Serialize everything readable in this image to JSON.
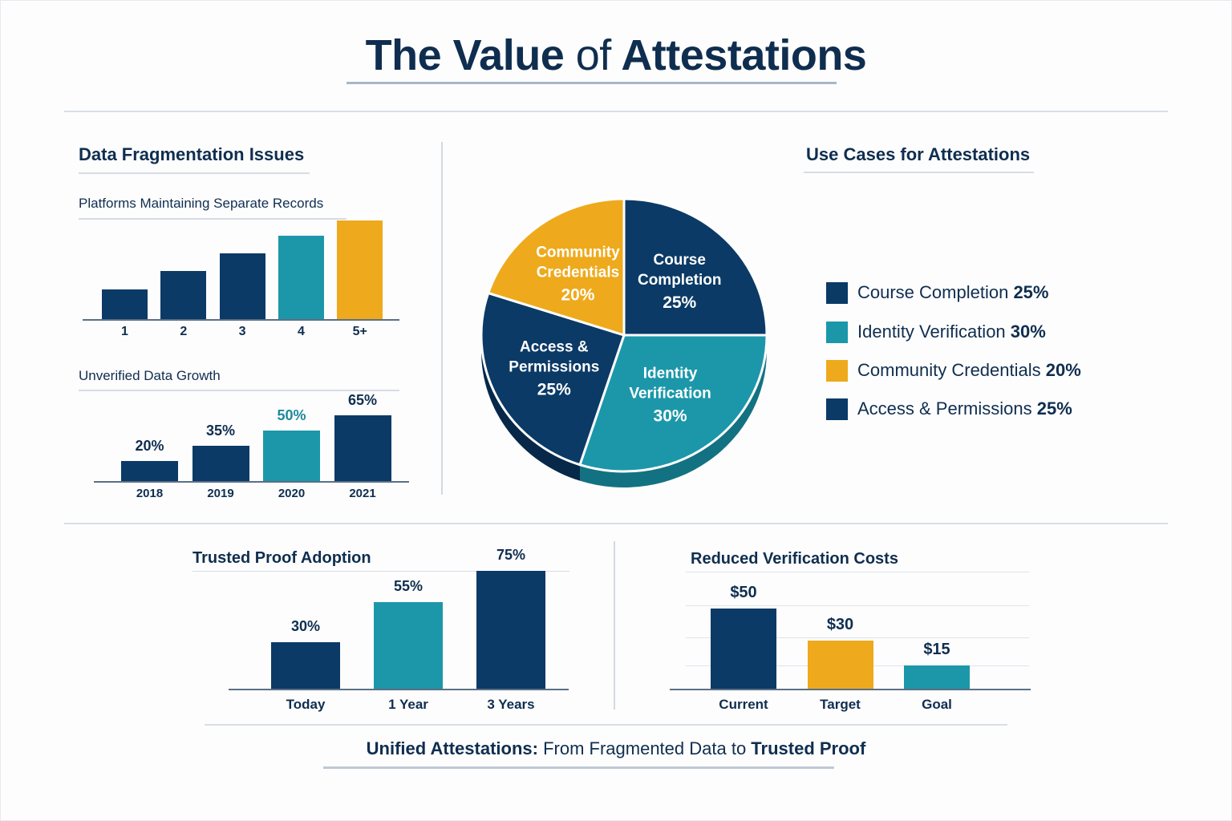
{
  "page": {
    "title_part1": "The Value",
    "title_part2": "of",
    "title_part3": "Attestations"
  },
  "colors": {
    "navy": "#0b3a66",
    "teal": "#1c97aa",
    "gold": "#eeaa1c",
    "text": "#0f2e4f"
  },
  "fragmentation": {
    "section_title": "Data Fragmentation Issues"
  },
  "use_cases": {
    "section_title": "Use Cases for Attestations",
    "legend": [
      {
        "label": "Course Completion",
        "value": "25%",
        "color": "#0b3a66"
      },
      {
        "label": "Identity Verification",
        "value": "30%",
        "color": "#1c97aa"
      },
      {
        "label": "Community Credentials",
        "value": "20%",
        "color": "#eeaa1c"
      },
      {
        "label": "Access & Permissions",
        "value": "25%",
        "color": "#0b3a66"
      }
    ]
  },
  "footer": {
    "bold1": "Unified Attestations:",
    "normal": " From Fragmented Data to ",
    "bold2": "Trusted Proof"
  },
  "chart_data": [
    {
      "id": "platforms",
      "type": "bar",
      "title": "Platforms Maintaining Separate Records",
      "xlabel": "",
      "ylabel": "",
      "categories": [
        "1",
        "2",
        "3",
        "4",
        "5+"
      ],
      "values": [
        1,
        1.6,
        2.2,
        2.8,
        3.3
      ],
      "colors": [
        "#0b3a66",
        "#0b3a66",
        "#0b3a66",
        "#1c97aa",
        "#eeaa1c"
      ],
      "ylim": [
        0,
        3.3
      ],
      "grid": false
    },
    {
      "id": "unverified",
      "type": "bar",
      "title": "Unverified Data Growth",
      "xlabel": "",
      "ylabel": "",
      "categories": [
        "2018",
        "2019",
        "2020",
        "2021"
      ],
      "values": [
        20,
        35,
        50,
        65
      ],
      "value_labels": [
        "20%",
        "35%",
        "50%",
        "65%"
      ],
      "colors": [
        "#0b3a66",
        "#0b3a66",
        "#1c97aa",
        "#0b3a66"
      ],
      "label_colors": [
        "#0f2e4f",
        "#0f2e4f",
        "#1c8a9c",
        "#0f2e4f"
      ],
      "ylim": [
        0,
        65
      ],
      "grid": false
    },
    {
      "id": "use_cases_pie",
      "type": "pie",
      "title": "Use Cases for Attestations",
      "categories": [
        "Course Completion",
        "Identity Verification",
        "Access & Permissions",
        "Community Credentials"
      ],
      "display_lines": [
        [
          "Course",
          "Completion"
        ],
        [
          "Identity",
          "Verification"
        ],
        [
          "Access &",
          "Permissions"
        ],
        [
          "Community",
          "Credentials"
        ]
      ],
      "values": [
        25,
        30,
        25,
        20
      ],
      "value_labels": [
        "25%",
        "30%",
        "25%",
        "20%"
      ],
      "colors": [
        "#0b3a66",
        "#1c97aa",
        "#0b3a66",
        "#eeaa1c"
      ],
      "legend": "right"
    },
    {
      "id": "adoption",
      "type": "bar",
      "title": "Trusted Proof Adoption",
      "xlabel": "",
      "ylabel": "",
      "categories": [
        "Today",
        "1 Year",
        "3 Years"
      ],
      "values": [
        30,
        55,
        75
      ],
      "value_labels": [
        "30%",
        "55%",
        "75%"
      ],
      "colors": [
        "#0b3a66",
        "#1c97aa",
        "#0b3a66"
      ],
      "ylim": [
        0,
        75
      ],
      "grid": false
    },
    {
      "id": "costs",
      "type": "bar",
      "title": "Reduced Verification Costs",
      "xlabel": "",
      "ylabel": "",
      "categories": [
        "Current",
        "Target",
        "Goal"
      ],
      "values": [
        50,
        30,
        15
      ],
      "value_labels": [
        "$50",
        "$30",
        "$15"
      ],
      "colors": [
        "#0b3a66",
        "#eeaa1c",
        "#1c97aa"
      ],
      "ylim": [
        0,
        50
      ],
      "grid": true
    }
  ]
}
